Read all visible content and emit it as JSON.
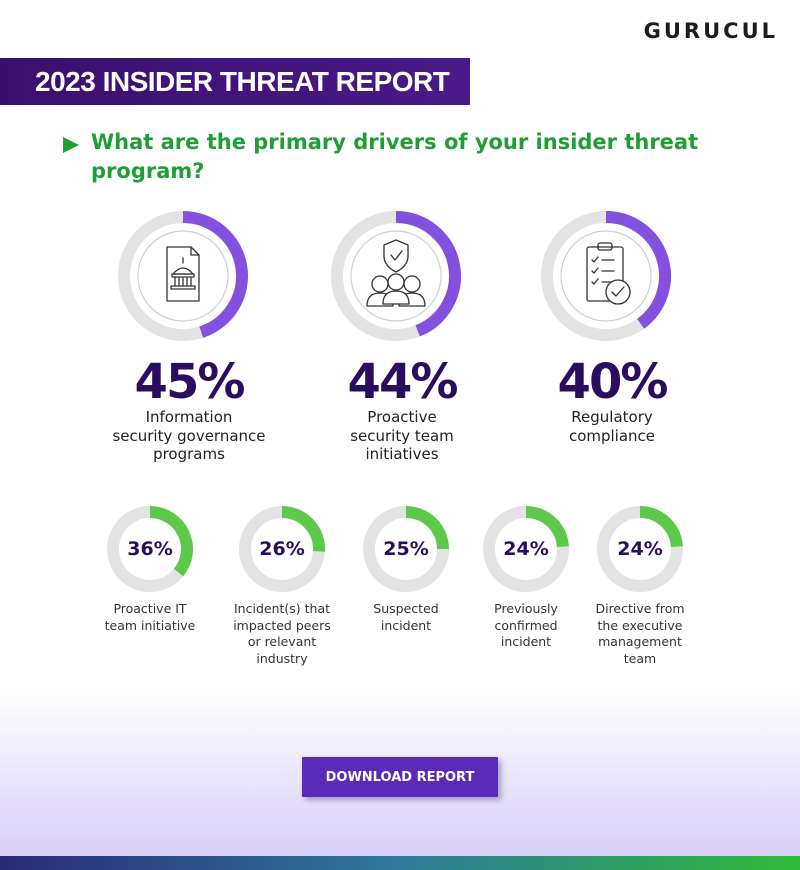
{
  "brand": {
    "logo_text": "GURUCUL"
  },
  "banner": {
    "title": "2023 INSIDER THREAT REPORT"
  },
  "question": "What are the primary drivers of your insider threat program?",
  "colors": {
    "primary_ring": "#8350e0",
    "secondary_ring": "#5cc94b",
    "track": "#e3e3e3",
    "heading": "#1e9e34",
    "pct_text": "#2a0d5e"
  },
  "chart_data": {
    "type": "donut",
    "unit": "%",
    "items": [
      {
        "value": 45,
        "label_lines": [
          "Information",
          "security governance",
          "programs"
        ],
        "icon": "government-document-icon",
        "tier": "primary"
      },
      {
        "value": 44,
        "label_lines": [
          "Proactive",
          "security team",
          "initiatives"
        ],
        "icon": "shield-team-icon",
        "tier": "primary"
      },
      {
        "value": 40,
        "label_lines": [
          "Regulatory",
          "compliance"
        ],
        "icon": "clipboard-checklist-icon",
        "tier": "primary"
      },
      {
        "value": 36,
        "label_lines": [
          "Proactive IT",
          "team initiative"
        ],
        "tier": "secondary"
      },
      {
        "value": 26,
        "label_lines": [
          "Incident(s) that",
          "impacted peers",
          "or relevant",
          "industry"
        ],
        "tier": "secondary"
      },
      {
        "value": 25,
        "label_lines": [
          "Suspected",
          "incident"
        ],
        "tier": "secondary"
      },
      {
        "value": 24,
        "label_lines": [
          "Previously",
          "confirmed",
          "incident"
        ],
        "tier": "secondary"
      },
      {
        "value": 24,
        "label_lines": [
          "Directive from",
          "the executive",
          "management",
          "team"
        ],
        "tier": "secondary"
      }
    ]
  },
  "cta": {
    "label": "DOWNLOAD REPORT"
  }
}
